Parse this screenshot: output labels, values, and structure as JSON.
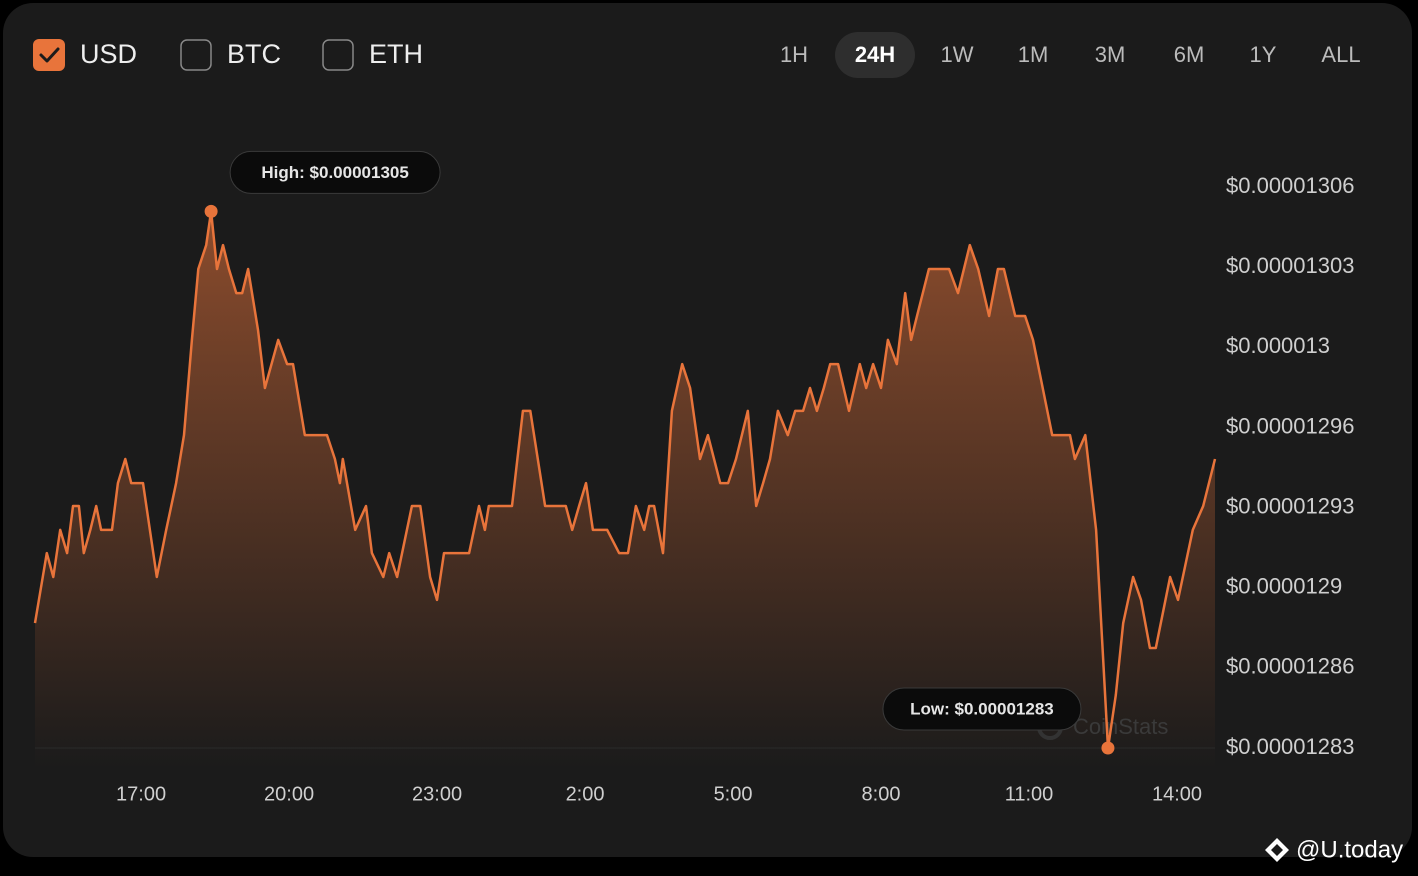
{
  "controls": {
    "currencies": [
      {
        "label": "USD",
        "checked": true
      },
      {
        "label": "BTC",
        "checked": false
      },
      {
        "label": "ETH",
        "checked": false
      }
    ],
    "timeframes": [
      "1H",
      "24H",
      "1W",
      "1M",
      "3M",
      "6M",
      "1Y",
      "ALL"
    ],
    "selected_timeframe": 1
  },
  "watermarks": [
    "CoinStats",
    "@U.today"
  ],
  "chart_data": {
    "type": "area",
    "color": "#e8743b",
    "annotations": {
      "high": "High: $0.00001305",
      "low": "Low: $0.00001283"
    },
    "xlim": [
      14.85,
      38.77
    ],
    "xticks": [
      {
        "value": 17,
        "label": "17:00"
      },
      {
        "value": 20,
        "label": "20:00"
      },
      {
        "value": 23,
        "label": "23:00"
      },
      {
        "value": 26,
        "label": "2:00"
      },
      {
        "value": 29,
        "label": "5:00"
      },
      {
        "value": 32,
        "label": "8:00"
      },
      {
        "value": 35,
        "label": "11:00"
      },
      {
        "value": 38,
        "label": "14:00"
      }
    ],
    "ylim": [
      1.283e-05,
      1.306e-05
    ],
    "yticks": [
      {
        "value": 1.283e-05,
        "label": "$0.00001283"
      },
      {
        "value": 1.28629e-05,
        "label": "$0.00001286"
      },
      {
        "value": 1.28957e-05,
        "label": "$0.0000129"
      },
      {
        "value": 1.29286e-05,
        "label": "$0.00001293"
      },
      {
        "value": 1.29614e-05,
        "label": "$0.00001296"
      },
      {
        "value": 1.29943e-05,
        "label": "$0.000013"
      },
      {
        "value": 1.30271e-05,
        "label": "$0.00001303"
      },
      {
        "value": 1.306e-05,
        "label": "$0.00001306"
      }
    ],
    "grid": false,
    "x": [
      14.85,
      15.09,
      15.22,
      15.36,
      15.5,
      15.62,
      15.74,
      15.84,
      15.97,
      16.09,
      16.19,
      16.41,
      16.53,
      16.68,
      16.8,
      17.04,
      17.32,
      17.51,
      17.71,
      17.87,
      18.03,
      18.16,
      18.32,
      18.42,
      18.54,
      18.66,
      18.78,
      18.93,
      19.05,
      19.17,
      19.37,
      19.51,
      19.78,
      19.96,
      20.08,
      20.32,
      20.77,
      20.93,
      21.03,
      21.09,
      21.34,
      21.56,
      21.68,
      21.91,
      22.03,
      22.19,
      22.49,
      22.66,
      22.86,
      23.0,
      23.14,
      23.65,
      23.85,
      23.97,
      24.05,
      24.52,
      24.74,
      24.89,
      25.19,
      25.61,
      25.74,
      25.88,
      26.02,
      26.16,
      26.45,
      26.69,
      26.87,
      27.03,
      27.2,
      27.3,
      27.4,
      27.58,
      27.76,
      27.97,
      28.13,
      28.33,
      28.49,
      28.74,
      28.9,
      29.06,
      29.3,
      29.47,
      29.61,
      29.75,
      29.91,
      30.11,
      30.26,
      30.42,
      30.56,
      30.7,
      30.84,
      30.97,
      31.13,
      31.35,
      31.57,
      31.7,
      31.84,
      32.0,
      32.14,
      32.32,
      32.49,
      32.61,
      32.73,
      32.97,
      33.38,
      33.56,
      33.8,
      33.97,
      34.19,
      34.37,
      34.49,
      34.72,
      34.92,
      35.08,
      35.47,
      35.83,
      35.93,
      36.14,
      36.36,
      36.6,
      36.76,
      36.91,
      37.11,
      37.27,
      37.45,
      37.57,
      37.86,
      38.02,
      38.32,
      38.53,
      38.77
    ],
    "values": [
      1.28812e-05,
      1.29099e-05,
      1.29001e-05,
      1.29194e-05,
      1.29099e-05,
      1.29292e-05,
      1.29292e-05,
      1.29099e-05,
      1.29194e-05,
      1.29292e-05,
      1.29194e-05,
      1.29194e-05,
      1.29386e-05,
      1.29485e-05,
      1.29386e-05,
      1.29386e-05,
      1.29001e-05,
      1.29194e-05,
      1.29386e-05,
      1.29583e-05,
      1.29973e-05,
      1.30264e-05,
      1.30362e-05,
      1.305e-05,
      1.30264e-05,
      1.30362e-05,
      1.30264e-05,
      1.30165e-05,
      1.30165e-05,
      1.30264e-05,
      1.30014e-05,
      1.29776e-05,
      1.29973e-05,
      1.29874e-05,
      1.29874e-05,
      1.29583e-05,
      1.29583e-05,
      1.29485e-05,
      1.29386e-05,
      1.29485e-05,
      1.29194e-05,
      1.29292e-05,
      1.29099e-05,
      1.29001e-05,
      1.29099e-05,
      1.29001e-05,
      1.29292e-05,
      1.29292e-05,
      1.29001e-05,
      1.28907e-05,
      1.29099e-05,
      1.29099e-05,
      1.29292e-05,
      1.29194e-05,
      1.29292e-05,
      1.29292e-05,
      1.29682e-05,
      1.29682e-05,
      1.29292e-05,
      1.29292e-05,
      1.29194e-05,
      1.29292e-05,
      1.29386e-05,
      1.29194e-05,
      1.29194e-05,
      1.29099e-05,
      1.29099e-05,
      1.29292e-05,
      1.29194e-05,
      1.29292e-05,
      1.29292e-05,
      1.29099e-05,
      1.29682e-05,
      1.29874e-05,
      1.29776e-05,
      1.29485e-05,
      1.29583e-05,
      1.29386e-05,
      1.29386e-05,
      1.29485e-05,
      1.29682e-05,
      1.29292e-05,
      1.29386e-05,
      1.29485e-05,
      1.29682e-05,
      1.29583e-05,
      1.29682e-05,
      1.29682e-05,
      1.29776e-05,
      1.29682e-05,
      1.29776e-05,
      1.29874e-05,
      1.29874e-05,
      1.29682e-05,
      1.29874e-05,
      1.29776e-05,
      1.29874e-05,
      1.29776e-05,
      1.29973e-05,
      1.29874e-05,
      1.30165e-05,
      1.29973e-05,
      1.30071e-05,
      1.30264e-05,
      1.30264e-05,
      1.30165e-05,
      1.30362e-05,
      1.30264e-05,
      1.30071e-05,
      1.30264e-05,
      1.30264e-05,
      1.30071e-05,
      1.30071e-05,
      1.29973e-05,
      1.29583e-05,
      1.29583e-05,
      1.29485e-05,
      1.29583e-05,
      1.29194e-05,
      1.283e-05,
      1.28517e-05,
      1.28812e-05,
      1.29001e-05,
      1.28907e-05,
      1.2871e-05,
      1.2871e-05,
      1.29001e-05,
      1.28907e-05,
      1.29194e-05,
      1.29292e-05,
      1.29485e-05
    ]
  }
}
